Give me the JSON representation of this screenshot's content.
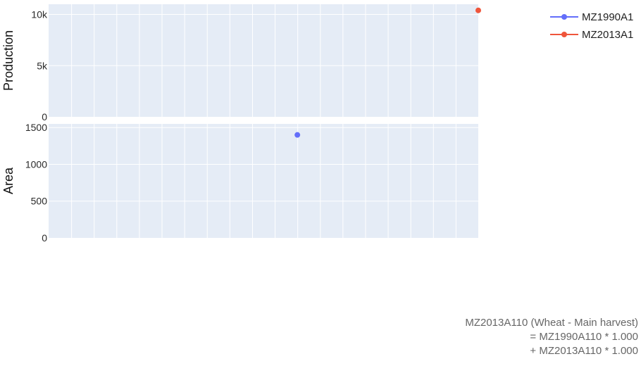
{
  "chart_data": {
    "type": "scatter",
    "subplots": [
      {
        "ylabel": "Production",
        "ylim": [
          0,
          11000
        ],
        "yticks": [
          0,
          5000,
          10000
        ],
        "yticklabels": [
          "0",
          "5k",
          "10k"
        ],
        "series": [
          {
            "name": "MZ2013A1",
            "x": [
              18
            ],
            "y": [
              10400
            ]
          }
        ]
      },
      {
        "ylabel": "Area",
        "ylim": [
          0,
          1550
        ],
        "yticks": [
          0,
          500,
          1000,
          1500
        ],
        "yticklabels": [
          "0",
          "500",
          "1000",
          "1500"
        ],
        "series": [
          {
            "name": "MZ1990A1",
            "x": [
              10
            ],
            "y": [
              1400
            ]
          }
        ]
      }
    ],
    "xlim": [
      -1,
      18
    ],
    "x_gridlines": 18,
    "grid": true,
    "legend_placement": "top-right",
    "legend": [
      {
        "name": "MZ1990A1",
        "color": "#636efa"
      },
      {
        "name": "MZ2013A1",
        "color": "#ef553b"
      }
    ],
    "plot_background": "#e5ecf6",
    "grid_color": "#ffffff"
  },
  "annotation": {
    "lines": [
      "MZ2013A110 (Wheat - Main harvest)",
      "= MZ1990A110 * 1.000",
      "+ MZ2013A110 * 1.000"
    ]
  }
}
